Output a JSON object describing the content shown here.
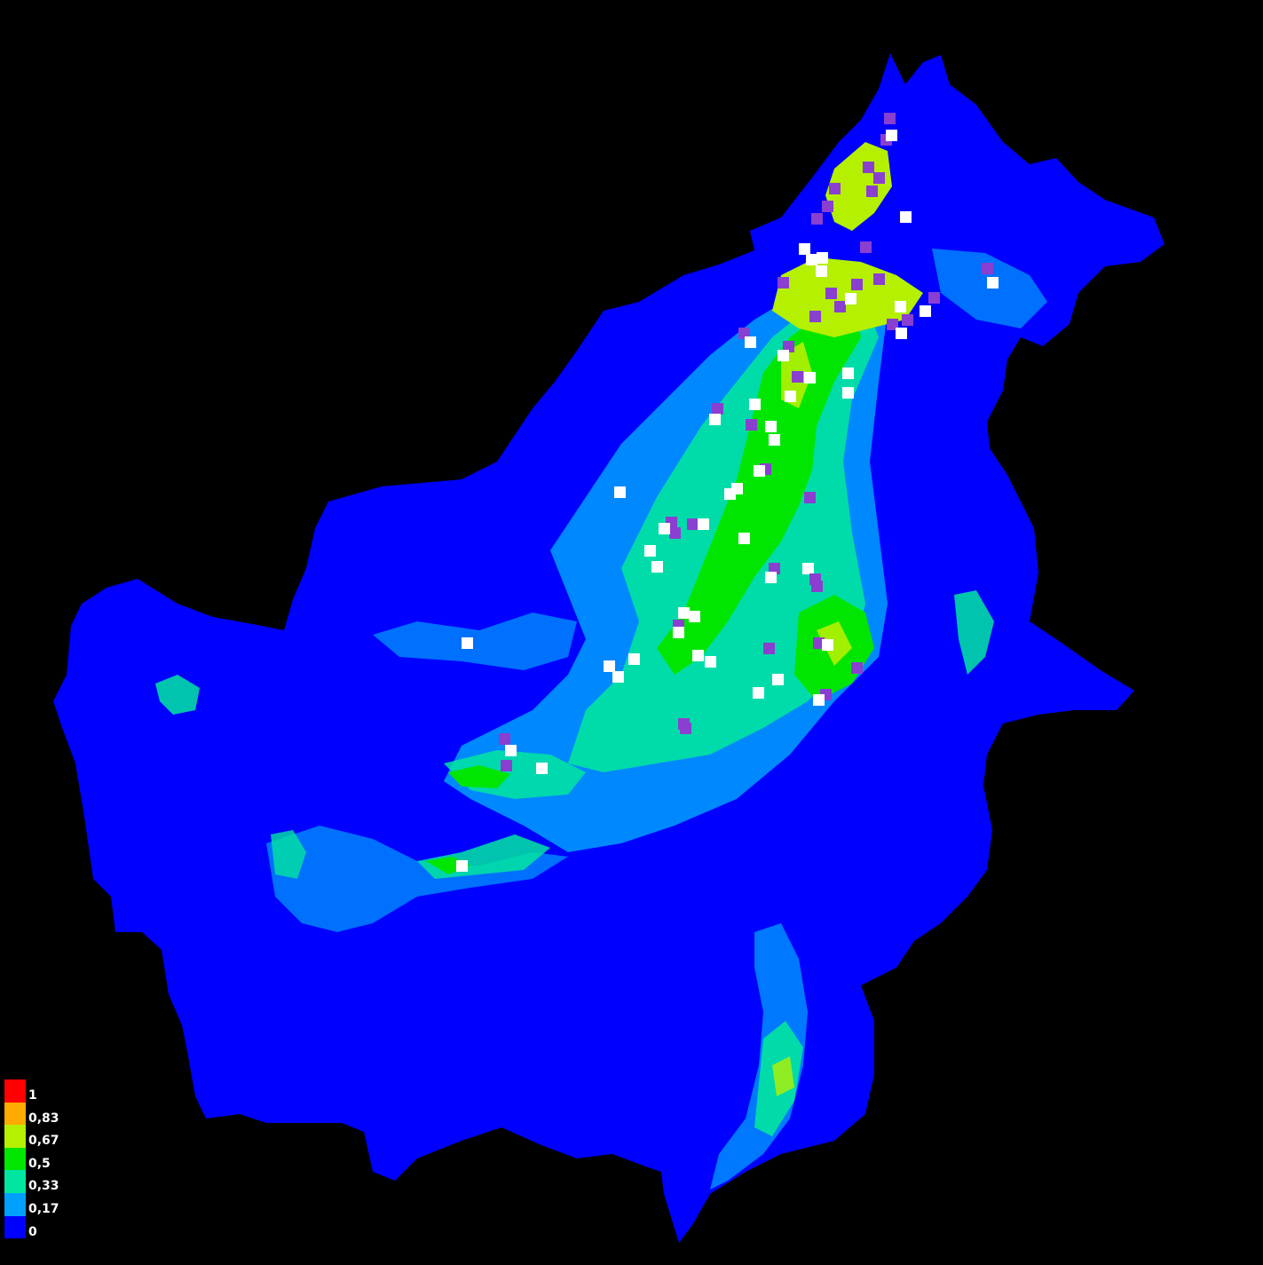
{
  "colors": {
    "background": "#000000",
    "suitability_0": "#0000ff",
    "suitability_017": "#00a0ff",
    "suitability_033": "#00e6a0",
    "suitability_05": "#00e600",
    "suitability_067": "#b4f000",
    "suitability_083": "#ffaa00",
    "suitability_1": "#ff0000",
    "record_white": "#ffffff",
    "record_purple": "#8a3fd0"
  },
  "legend": {
    "items": [
      {
        "label": "1",
        "color": "#ff0000"
      },
      {
        "label": "0,83",
        "color": "#ffaa00"
      },
      {
        "label": "0,67",
        "color": "#b4f000"
      },
      {
        "label": "0,5",
        "color": "#00e600"
      },
      {
        "label": "0,33",
        "color": "#00e6a0"
      },
      {
        "label": "0,17",
        "color": "#00a0ff"
      },
      {
        "label": "0",
        "color": "#0000ff"
      }
    ]
  }
}
